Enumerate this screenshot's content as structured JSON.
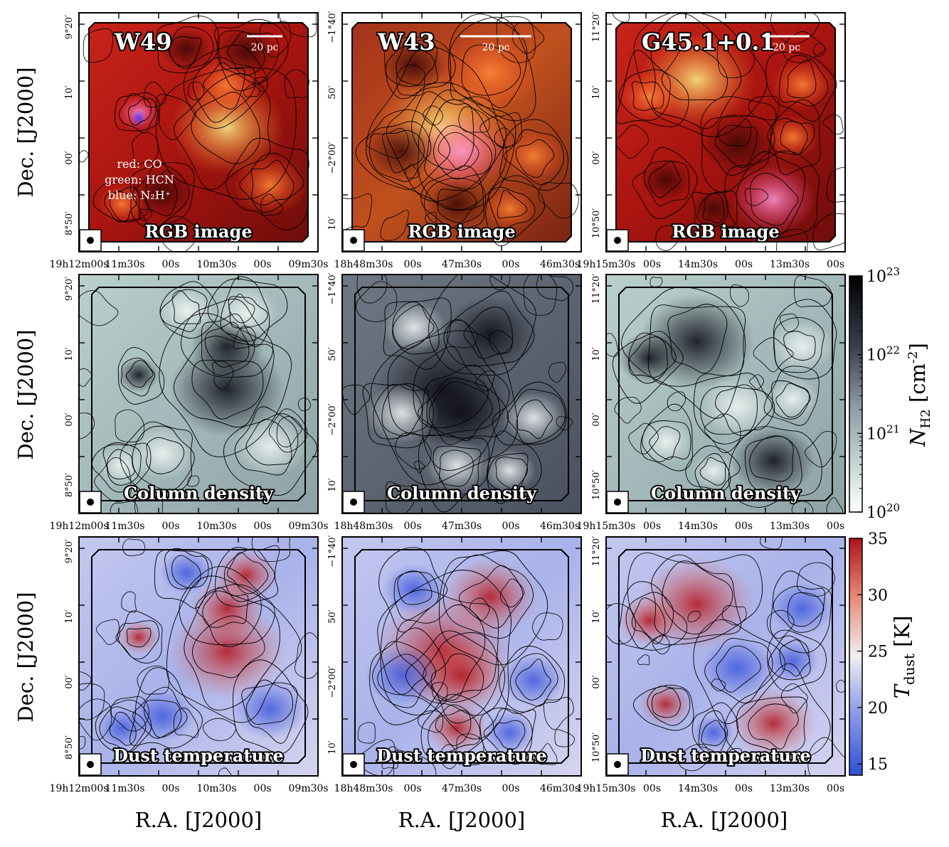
{
  "figure": {
    "panel_titles": [
      "W49",
      "W43",
      "G45.1+0.1"
    ],
    "scale_bar_label": "20 pc",
    "row_labels": [
      "RGB image",
      "Column density",
      "Dust temperature"
    ],
    "rgb_legend": [
      "red: CO",
      "green: HCN",
      "blue: N₂H⁺"
    ],
    "ylabel": "Dec. [J2000]",
    "xlabel": "R.A. [J2000]",
    "x_ticks": [
      [
        "19h12m00s",
        "11m30s",
        "00s",
        "10m30s",
        "00s",
        "09m30s"
      ],
      [
        "18h48m30s",
        "00s",
        "47m30s",
        "00s",
        "46m30s"
      ],
      [
        "19h15m30s",
        "00s",
        "14m30s",
        "00s",
        "13m30s",
        "00s"
      ]
    ],
    "y_ticks": [
      [
        "8°50′",
        "00′",
        "10′",
        "9°20′"
      ],
      [
        "10′",
        "−2°00′",
        "50′",
        "−1°40′"
      ],
      [
        "10°50′",
        "00′",
        "10′",
        "11°20′"
      ]
    ],
    "colorbar_density": {
      "label": "N_H2 [cm^-2]",
      "scale": "log",
      "range": [
        1e+20,
        1e+23
      ],
      "tick_labels": [
        "10^20",
        "10^21",
        "10^22",
        "10^23"
      ]
    },
    "colorbar_temperature": {
      "label": "T_dust [K]",
      "range": [
        14,
        35
      ],
      "ticks": [
        15,
        20,
        25,
        30,
        35
      ]
    },
    "colors": {
      "rgb_base": "#b31a12",
      "density_low": "#b5cdca",
      "density_high": "#0a0a10",
      "temp_low": "#3a55d8",
      "temp_mid": "#e8e8f0",
      "temp_high": "#b8141a"
    }
  },
  "chart_data": {
    "type": "heatmap",
    "layout": "3 rows (RGB image, column density, dust temperature) x 3 columns (W49, W43, G45.1+0.1)",
    "panels": [
      "W49",
      "W43",
      "G45.1+0.1"
    ],
    "rows": [
      "RGB image",
      "Column density",
      "Dust temperature"
    ],
    "density_colorbar_range": [
      1e+20,
      1e+23
    ],
    "temperature_colorbar_range": [
      14,
      35
    ]
  }
}
